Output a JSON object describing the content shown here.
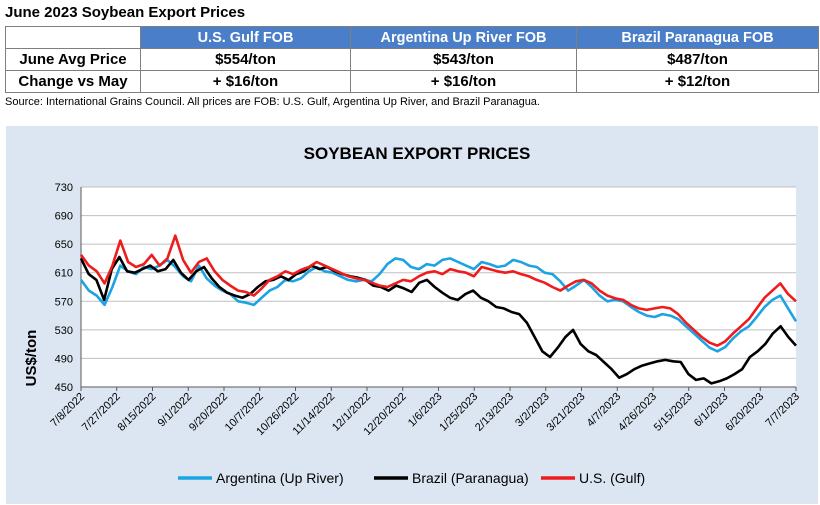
{
  "report": {
    "title": "June 2023 Soybean Export Prices",
    "source": "Source: International Grains Council. All prices are FOB: U.S. Gulf, Argentina Up River, and Brazil Paranagua."
  },
  "table": {
    "columns": [
      "U.S. Gulf FOB",
      "Argentina Up River FOB",
      "Brazil Paranagua FOB"
    ],
    "rows": [
      {
        "label": "June Avg Price",
        "values": [
          "$554/ton",
          "$543/ton",
          "$487/ton"
        ]
      },
      {
        "label": "Change vs May",
        "values": [
          "+ $16/ton",
          "+ $16/ton",
          "+ $12/ton"
        ]
      }
    ]
  },
  "colors": {
    "header_blue": "#4a7ec9",
    "panel_bg": "#dce6f2",
    "argentina": "#1ca3e3",
    "brazil": "#000000",
    "us": "#ee1c1c"
  },
  "chart_data": {
    "type": "line",
    "title": "SOYBEAN EXPORT PRICES",
    "ylabel": "US$/ton",
    "xlabel": "",
    "ylim": [
      450,
      730
    ],
    "yticks": [
      450,
      490,
      530,
      570,
      610,
      650,
      690,
      730
    ],
    "grid": true,
    "legend_position": "bottom",
    "x_tick_labels": [
      "7/8/2022",
      "7/27/2022",
      "8/15/2022",
      "9/1/2022",
      "9/20/2022",
      "10/7/2022",
      "10/26/2022",
      "11/14/2022",
      "12/1/2022",
      "12/20/2022",
      "1/6/2023",
      "1/25/2023",
      "2/13/2023",
      "3/2/2023",
      "3/21/2023",
      "4/7/2023",
      "4/26/2023",
      "5/15/2023",
      "6/1/2023",
      "6/20/2023",
      "7/7/2023"
    ],
    "series": [
      {
        "name": "Argentina (Up River)",
        "color": "#1ca3e3",
        "values": [
          600,
          585,
          578,
          565,
          590,
          620,
          612,
          608,
          618,
          615,
          620,
          628,
          618,
          605,
          598,
          620,
          602,
          592,
          585,
          580,
          570,
          568,
          565,
          575,
          585,
          590,
          600,
          598,
          602,
          612,
          618,
          612,
          610,
          605,
          600,
          598,
          600,
          598,
          608,
          622,
          630,
          628,
          618,
          615,
          622,
          620,
          628,
          630,
          625,
          620,
          615,
          625,
          622,
          618,
          620,
          628,
          625,
          620,
          618,
          610,
          608,
          598,
          585,
          592,
          600,
          590,
          578,
          570,
          572,
          570,
          562,
          555,
          550,
          548,
          552,
          550,
          545,
          535,
          525,
          515,
          505,
          500,
          506,
          518,
          528,
          535,
          548,
          562,
          572,
          578,
          560,
          542
        ]
      },
      {
        "name": "Brazil (Paranagua)",
        "color": "#000000",
        "values": [
          630,
          608,
          600,
          572,
          615,
          632,
          612,
          610,
          615,
          620,
          612,
          615,
          628,
          610,
          600,
          612,
          618,
          602,
          590,
          582,
          578,
          575,
          580,
          590,
          598,
          600,
          605,
          600,
          608,
          612,
          620,
          615,
          618,
          612,
          608,
          605,
          603,
          600,
          592,
          590,
          585,
          592,
          588,
          583,
          596,
          600,
          590,
          582,
          575,
          572,
          580,
          585,
          575,
          570,
          562,
          560,
          555,
          552,
          540,
          520,
          500,
          492,
          505,
          520,
          530,
          510,
          500,
          495,
          485,
          475,
          463,
          468,
          475,
          480,
          483,
          486,
          488,
          486,
          485,
          468,
          460,
          462,
          455,
          458,
          462,
          468,
          475,
          492,
          500,
          510,
          525,
          535,
          520,
          508
        ]
      },
      {
        "name": "U.S. (Gulf)",
        "color": "#ee1c1c",
        "values": [
          635,
          620,
          612,
          595,
          620,
          655,
          625,
          618,
          622,
          635,
          620,
          630,
          662,
          628,
          610,
          625,
          630,
          612,
          600,
          592,
          585,
          583,
          578,
          588,
          600,
          605,
          612,
          608,
          614,
          618,
          625,
          620,
          615,
          610,
          605,
          602,
          600,
          596,
          592,
          590,
          595,
          600,
          598,
          605,
          610,
          612,
          608,
          615,
          612,
          610,
          605,
          618,
          615,
          612,
          610,
          612,
          608,
          605,
          600,
          596,
          590,
          585,
          592,
          598,
          600,
          595,
          585,
          578,
          574,
          572,
          565,
          560,
          558,
          560,
          562,
          560,
          552,
          540,
          530,
          520,
          512,
          508,
          514,
          525,
          535,
          545,
          560,
          575,
          585,
          595,
          580,
          570
        ]
      }
    ]
  }
}
